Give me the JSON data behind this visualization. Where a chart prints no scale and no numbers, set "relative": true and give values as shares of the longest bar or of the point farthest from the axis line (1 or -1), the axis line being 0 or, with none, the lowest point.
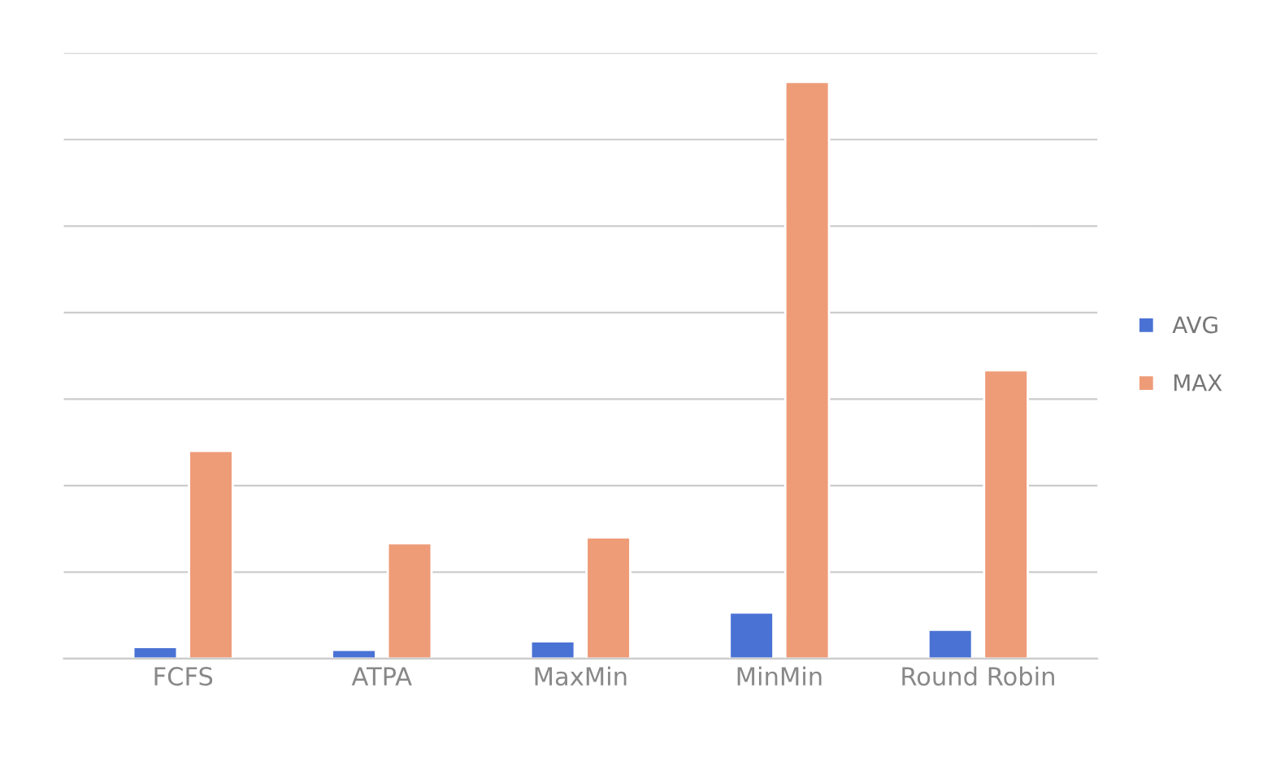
{
  "chart_data": {
    "type": "bar",
    "relative": true,
    "categories": [
      "FCFS",
      "ATPA",
      "MaxMin",
      "MinMin",
      "Round Robin"
    ],
    "series": [
      {
        "name": "AVG",
        "color": "#4a72d4",
        "values": [
          0.02,
          0.015,
          0.03,
          0.08,
          0.05
        ]
      },
      {
        "name": "MAX",
        "color": "#ee9c78",
        "values": [
          0.36,
          0.2,
          0.21,
          1,
          0.5
        ]
      }
    ],
    "grid": "y",
    "legend": "right"
  }
}
